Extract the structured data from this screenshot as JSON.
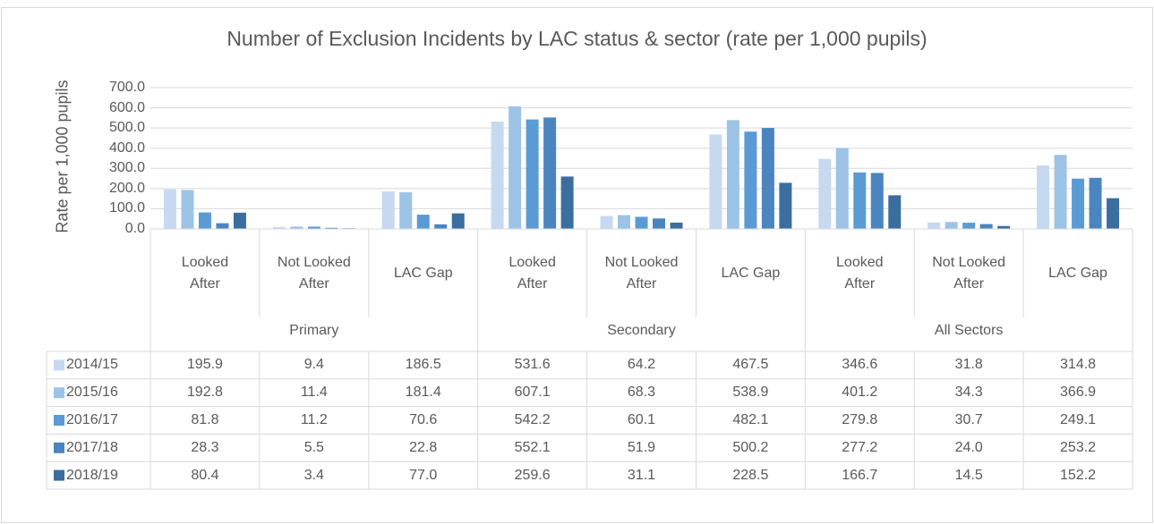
{
  "chart_data": {
    "type": "bar",
    "title": "Number of Exclusion Incidents by LAC status & sector (rate per 1,000 pupils)",
    "y_label": "Rate per 1,000 pupils",
    "categories": [
      "Looked After",
      "Not Looked After",
      "LAC Gap",
      "Looked After",
      "Not Looked After",
      "LAC Gap",
      "Looked After",
      "Not Looked After",
      "LAC Gap"
    ],
    "groups": [
      "Primary",
      "Secondary",
      "All Sectors"
    ],
    "ylim": [
      0,
      700
    ],
    "yticks": [
      {
        "value": 0,
        "label": "0.0"
      },
      {
        "value": 100,
        "label": "100.0"
      },
      {
        "value": 200,
        "label": "200.0"
      },
      {
        "value": 300,
        "label": "300.0"
      },
      {
        "value": 400,
        "label": "400.0"
      },
      {
        "value": 500,
        "label": "500.0"
      },
      {
        "value": 600,
        "label": "600.0"
      },
      {
        "value": 700,
        "label": "700.0"
      }
    ],
    "grid": true,
    "series": [
      {
        "name": "2014/15",
        "color": "#c6d9f1",
        "values": [
          195.9,
          9.4,
          186.5,
          531.6,
          64.2,
          467.5,
          346.6,
          31.8,
          314.8
        ],
        "value_labels": [
          "195.9",
          "9.4",
          "186.5",
          "531.6",
          "64.2",
          "467.5",
          "346.6",
          "31.8",
          "314.8"
        ]
      },
      {
        "name": "2015/16",
        "color": "#9dc3e6",
        "values": [
          192.8,
          11.4,
          181.4,
          607.1,
          68.3,
          538.9,
          401.2,
          34.3,
          366.9
        ],
        "value_labels": [
          "192.8",
          "11.4",
          "181.4",
          "607.1",
          "68.3",
          "538.9",
          "401.2",
          "34.3",
          "366.9"
        ]
      },
      {
        "name": "2016/17",
        "color": "#5b9bd5",
        "values": [
          81.8,
          11.2,
          70.6,
          542.2,
          60.1,
          482.1,
          279.8,
          30.7,
          249.1
        ],
        "value_labels": [
          "81.8",
          "11.2",
          "70.6",
          "542.2",
          "60.1",
          "482.1",
          "279.8",
          "30.7",
          "249.1"
        ]
      },
      {
        "name": "2017/18",
        "color": "#4a85c0",
        "values": [
          28.3,
          5.5,
          22.8,
          552.1,
          51.9,
          500.2,
          277.2,
          24.0,
          253.2
        ],
        "value_labels": [
          "28.3",
          "5.5",
          "22.8",
          "552.1",
          "51.9",
          "500.2",
          "277.2",
          "24.0",
          "253.2"
        ]
      },
      {
        "name": "2018/19",
        "color": "#3b6e9f",
        "values": [
          80.4,
          3.4,
          77.0,
          259.6,
          31.1,
          228.5,
          166.7,
          14.5,
          152.2
        ],
        "value_labels": [
          "80.4",
          "3.4",
          "77.0",
          "259.6",
          "31.1",
          "228.5",
          "166.7",
          "14.5",
          "152.2"
        ]
      }
    ]
  }
}
